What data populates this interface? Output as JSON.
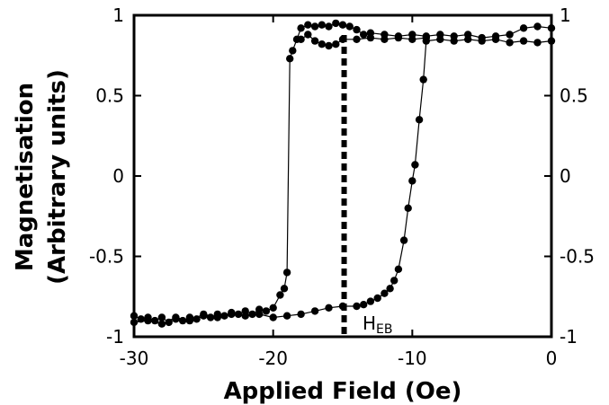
{
  "chart_data": {
    "type": "scatter",
    "title": "",
    "xlabel": "Applied Field (Oe)",
    "ylabel_line1": "Magnetisation",
    "ylabel_line2": "(Arbitrary units)",
    "xlim": [
      -30,
      0
    ],
    "ylim": [
      -1,
      1
    ],
    "x_ticks": [
      -30,
      -20,
      -10,
      0
    ],
    "x_tick_labels": [
      "-30",
      "-20",
      "-10",
      "0"
    ],
    "y_ticks": [
      -1,
      -0.5,
      0,
      0.5,
      1
    ],
    "y_tick_labels": [
      "-1",
      "-0.5",
      "0",
      "0.5",
      "1"
    ],
    "right_axis_tick_labels": [
      "-1",
      "-0.5",
      "0",
      "0.5",
      "1"
    ],
    "grid": false,
    "legend": "none",
    "colors": {
      "series": "#000000",
      "reference_line": "#000000"
    },
    "reference_line": {
      "x": -14.9,
      "style": "dotted",
      "label_main": "H",
      "label_sub": "EB"
    },
    "series": [
      {
        "points": [
          [
            -30,
            -0.87
          ],
          [
            -29.5,
            -0.89
          ],
          [
            -29,
            -0.88
          ],
          [
            -28.5,
            -0.9
          ],
          [
            -28,
            -0.88
          ],
          [
            -27.5,
            -0.91
          ],
          [
            -27,
            -0.89
          ],
          [
            -26.5,
            -0.9
          ],
          [
            -26,
            -0.88
          ],
          [
            -25.5,
            -0.89
          ],
          [
            -25,
            -0.87
          ],
          [
            -24.5,
            -0.88
          ],
          [
            -24,
            -0.86
          ],
          [
            -23.5,
            -0.87
          ],
          [
            -23,
            -0.85
          ],
          [
            -22.5,
            -0.86
          ],
          [
            -22,
            -0.84
          ],
          [
            -21.5,
            -0.86
          ],
          [
            -21,
            -0.83
          ],
          [
            -20.5,
            -0.84
          ],
          [
            -20,
            -0.82
          ],
          [
            -19.5,
            -0.74
          ],
          [
            -19.2,
            -0.7
          ],
          [
            -19,
            -0.6
          ],
          [
            -18.8,
            0.73
          ],
          [
            -18.6,
            0.78
          ],
          [
            -18.3,
            0.85
          ],
          [
            -18,
            0.92
          ],
          [
            -17.5,
            0.94
          ],
          [
            -17,
            0.93
          ],
          [
            -16.5,
            0.94
          ],
          [
            -16,
            0.93
          ],
          [
            -15.5,
            0.95
          ],
          [
            -15,
            0.94
          ],
          [
            -14.5,
            0.93
          ],
          [
            -14,
            0.91
          ],
          [
            -13.5,
            0.88
          ],
          [
            -13,
            0.89
          ],
          [
            -12,
            0.88
          ],
          [
            -11,
            0.87
          ],
          [
            -10,
            0.88
          ],
          [
            -9,
            0.87
          ],
          [
            -8,
            0.88
          ],
          [
            -7,
            0.87
          ],
          [
            -6,
            0.88
          ],
          [
            -5,
            0.86
          ],
          [
            -4,
            0.87
          ],
          [
            -3,
            0.88
          ],
          [
            -2,
            0.92
          ],
          [
            -1,
            0.93
          ],
          [
            0,
            0.92
          ]
        ]
      },
      {
        "points": [
          [
            0,
            0.84
          ],
          [
            -1,
            0.83
          ],
          [
            -2,
            0.84
          ],
          [
            -3,
            0.83
          ],
          [
            -4,
            0.85
          ],
          [
            -5,
            0.84
          ],
          [
            -6,
            0.85
          ],
          [
            -7,
            0.84
          ],
          [
            -8,
            0.85
          ],
          [
            -9,
            0.84
          ],
          [
            -9.2,
            0.6
          ],
          [
            -9.5,
            0.35
          ],
          [
            -9.8,
            0.07
          ],
          [
            -10,
            -0.03
          ],
          [
            -10.3,
            -0.2
          ],
          [
            -10.6,
            -0.4
          ],
          [
            -11,
            -0.58
          ],
          [
            -11.3,
            -0.65
          ],
          [
            -11.6,
            -0.7
          ],
          [
            -12,
            -0.73
          ],
          [
            -12.5,
            -0.76
          ],
          [
            -13,
            -0.78
          ],
          [
            -13.5,
            -0.8
          ],
          [
            -14,
            -0.81
          ],
          [
            -15,
            -0.81
          ],
          [
            -16,
            -0.82
          ],
          [
            -17,
            -0.84
          ],
          [
            -18,
            -0.86
          ],
          [
            -19,
            -0.87
          ],
          [
            -20,
            -0.88
          ],
          [
            -21,
            -0.86
          ],
          [
            -22,
            -0.87
          ],
          [
            -23,
            -0.86
          ],
          [
            -24,
            -0.88
          ],
          [
            -25,
            -0.86
          ],
          [
            -26,
            -0.9
          ],
          [
            -27,
            -0.88
          ],
          [
            -28,
            -0.92
          ],
          [
            -29,
            -0.9
          ],
          [
            -30,
            -0.91
          ]
        ]
      },
      {
        "points": [
          [
            -18,
            0.85
          ],
          [
            -17.5,
            0.88
          ],
          [
            -17,
            0.84
          ],
          [
            -16.5,
            0.82
          ],
          [
            -16,
            0.81
          ],
          [
            -15.5,
            0.82
          ],
          [
            -15,
            0.85
          ],
          [
            -14,
            0.85
          ],
          [
            -13,
            0.86
          ],
          [
            -12,
            0.85
          ],
          [
            -11,
            0.86
          ],
          [
            -10,
            0.85
          ],
          [
            -9,
            0.86
          ]
        ]
      }
    ]
  }
}
